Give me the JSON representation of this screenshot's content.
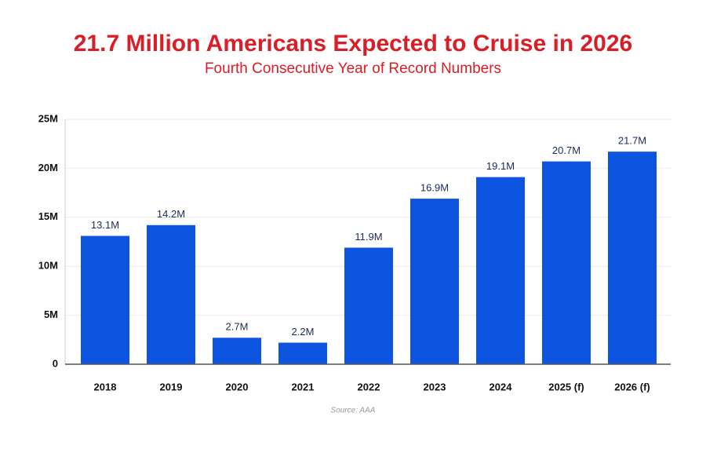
{
  "chart_data": {
    "type": "bar",
    "title": "21.7 Million Americans Expected to Cruise in 2026",
    "subtitle": "Fourth Consecutive Year of Record Numbers",
    "source": "Source: AAA",
    "categories": [
      "2018",
      "2019",
      "2020",
      "2021",
      "2022",
      "2023",
      "2024",
      "2025 (f)",
      "2026 (f)"
    ],
    "values": [
      13.1,
      14.2,
      2.7,
      2.2,
      11.9,
      16.9,
      19.1,
      20.7,
      21.7
    ],
    "value_labels": [
      "13.1M",
      "14.2M",
      "2.7M",
      "2.2M",
      "11.9M",
      "16.9M",
      "19.1M",
      "20.7M",
      "21.7M"
    ],
    "color": "#0d55e0",
    "ylim": [
      0,
      25
    ],
    "yticks": [
      0,
      {
        "value": 5,
        "label": "5M"
      },
      {
        "value": 10,
        "label": "10M"
      },
      {
        "value": 15,
        "label": "15M"
      },
      {
        "value": 20,
        "label": "20M"
      },
      {
        "value": 25,
        "label": "25M"
      }
    ],
    "grid": true
  }
}
